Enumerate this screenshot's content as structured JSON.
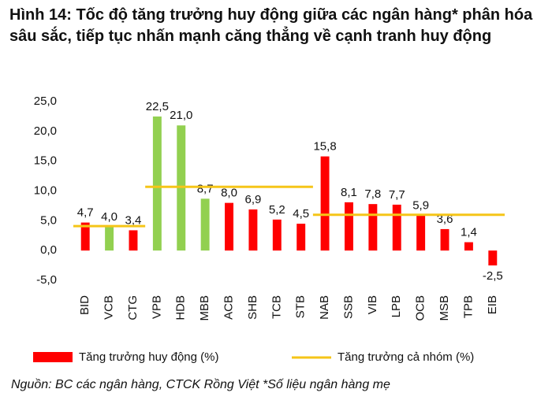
{
  "chart_data": {
    "type": "bar",
    "title": "Hình 14: Tốc độ tăng trưởng huy động giữa các ngân hàng* phân hóa sâu sắc, tiếp tục nhấn mạnh căng thẳng về cạnh tranh huy động",
    "categories": [
      "BID",
      "VCB",
      "CTG",
      "VPB",
      "HDB",
      "MBB",
      "ACB",
      "SHB",
      "TCB",
      "STB",
      "NAB",
      "SSB",
      "VIB",
      "LPB",
      "OCB",
      "MSB",
      "TPB",
      "EIB"
    ],
    "series": [
      {
        "name": "Tăng trưởng huy động (%)",
        "color": "#ff0000",
        "point_colors": [
          "#ff0000",
          "#92d050",
          "#ff0000",
          "#92d050",
          "#92d050",
          "#92d050",
          "#ff0000",
          "#ff0000",
          "#ff0000",
          "#ff0000",
          "#ff0000",
          "#ff0000",
          "#ff0000",
          "#ff0000",
          "#ff0000",
          "#ff0000",
          "#ff0000",
          "#ff0000"
        ],
        "values": [
          4.7,
          4.0,
          3.4,
          22.5,
          21.0,
          8.7,
          8.0,
          6.9,
          5.2,
          4.5,
          15.8,
          8.1,
          7.8,
          7.7,
          5.9,
          3.6,
          1.4,
          -2.5
        ],
        "value_labels": [
          "4,7",
          "4,0",
          "3,4",
          "22,5",
          "21,0",
          "8,7",
          "8,0",
          "6,9",
          "5,2",
          "4,5",
          "15,8",
          "8,1",
          "7,8",
          "7,7",
          "5,9",
          "3,6",
          "1,4",
          "-2,5"
        ]
      },
      {
        "name": "Tăng trưởng cả nhóm (%)",
        "type": "line",
        "color": "#f5c518",
        "values": [
          4.1,
          4.1,
          4.1,
          10.7,
          10.7,
          10.7,
          10.7,
          10.7,
          10.7,
          10.7,
          6.0,
          6.0,
          6.0,
          6.0,
          6.0,
          6.0,
          6.0,
          6.0
        ]
      }
    ],
    "ylim": [
      -5,
      25
    ],
    "yticks": [
      {
        "value": -5,
        "label": "-5,0"
      },
      {
        "value": 0,
        "label": "0,0"
      },
      {
        "value": 5,
        "label": "5,0"
      },
      {
        "value": 10,
        "label": "10,0"
      },
      {
        "value": 15,
        "label": "15,0"
      },
      {
        "value": 20,
        "label": "20,0"
      },
      {
        "value": 25,
        "label": "25,0"
      }
    ],
    "grid": false,
    "source": "Nguồn: BC các ngân hàng, CTCK Rồng Việt *Số liệu ngân hàng mẹ"
  }
}
